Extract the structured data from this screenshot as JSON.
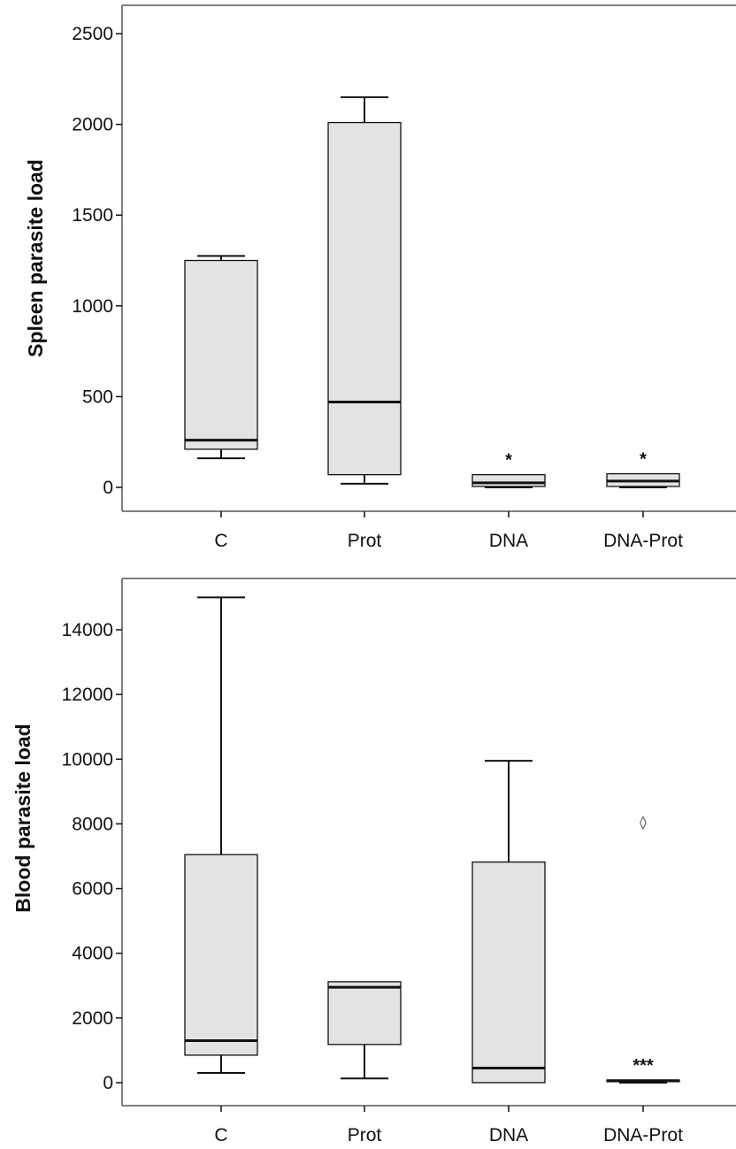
{
  "chart_data": [
    {
      "type": "box",
      "ylabel": "Spleen parasite load",
      "categories": [
        "C",
        "Prot",
        "DNA",
        "DNA-Prot"
      ],
      "ylim": [
        -120,
        2600
      ],
      "yticks": [
        0,
        500,
        1000,
        1500,
        2000,
        2500
      ],
      "boxes": [
        {
          "category": "C",
          "min": 160,
          "q1": 210,
          "median": 260,
          "q3": 1250,
          "max": 1275,
          "annotation": "",
          "outliers": []
        },
        {
          "category": "Prot",
          "min": 20,
          "q1": 70,
          "median": 470,
          "q3": 2010,
          "max": 2150,
          "annotation": "",
          "outliers": []
        },
        {
          "category": "DNA",
          "min": 0,
          "q1": 5,
          "median": 25,
          "q3": 70,
          "max": 70,
          "annotation": "*",
          "outliers": []
        },
        {
          "category": "DNA-Prot",
          "min": 0,
          "q1": 5,
          "median": 35,
          "q3": 75,
          "max": 75,
          "annotation": "*",
          "outliers": []
        }
      ],
      "grid": false,
      "legend": "none"
    },
    {
      "type": "box",
      "ylabel": "Blood parasite load",
      "categories": [
        "C",
        "Prot",
        "DNA",
        "DNA-Prot"
      ],
      "ylim": [
        -800,
        16000
      ],
      "yticks": [
        0,
        2000,
        4000,
        6000,
        8000,
        10000,
        12000,
        14000
      ],
      "boxes": [
        {
          "category": "C",
          "min": 300,
          "q1": 850,
          "median": 1300,
          "q3": 7050,
          "max": 15000,
          "annotation": "",
          "outliers": []
        },
        {
          "category": "Prot",
          "min": 130,
          "q1": 1180,
          "median": 2950,
          "q3": 3120,
          "max": 3120,
          "annotation": "",
          "outliers": []
        },
        {
          "category": "DNA",
          "min": 0,
          "q1": 0,
          "median": 450,
          "q3": 6820,
          "max": 9950,
          "annotation": "",
          "outliers": []
        },
        {
          "category": "DNA-Prot",
          "min": 0,
          "q1": 30,
          "median": 60,
          "q3": 80,
          "max": 80,
          "annotation": "***",
          "outliers": [
            {
              "value": 8050,
              "marker": "◊"
            }
          ]
        }
      ],
      "grid": false,
      "legend": "none"
    }
  ],
  "style": {
    "box_fill": "#e3e3e3",
    "line_color": "#111111",
    "frame_color": "#555555"
  }
}
